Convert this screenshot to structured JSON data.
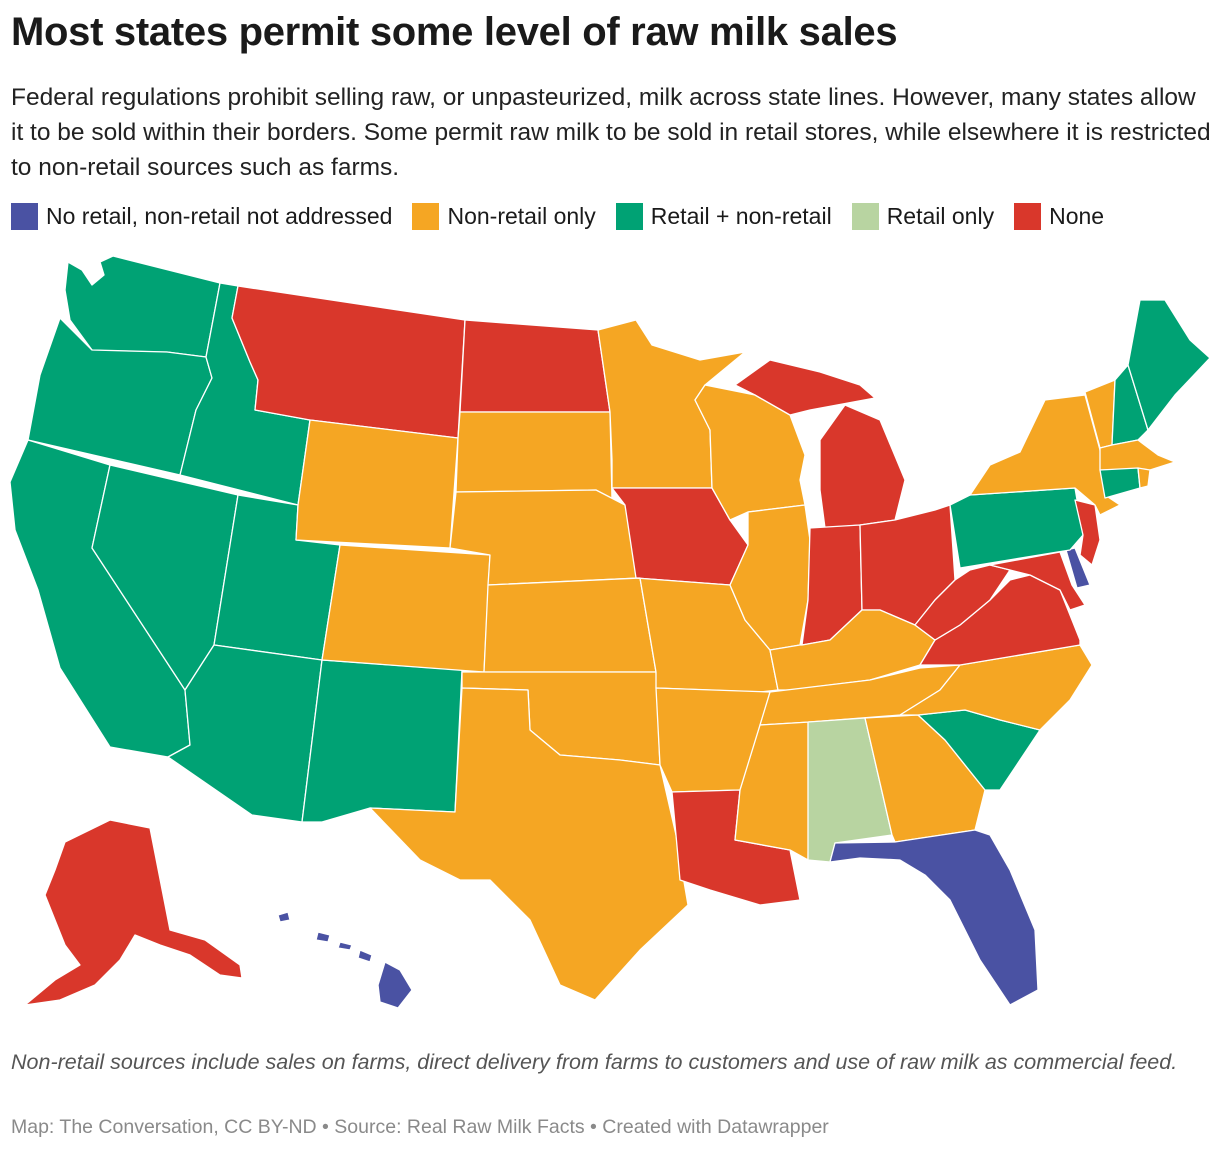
{
  "title": "Most states permit some level of raw milk sales",
  "subtitle": "Federal regulations prohibit selling raw, or unpasteurized, milk across state lines. However, many states allow it to be sold within their borders. Some permit raw milk to be sold in retail stores, while elsewhere it is restricted to non-retail sources such as farms.",
  "legend": [
    {
      "key": "no_retail",
      "label": "No retail, non-retail not addressed",
      "color": "#4a52a3"
    },
    {
      "key": "non_retail",
      "label": "Non-retail only",
      "color": "#f5a623"
    },
    {
      "key": "retail_plus",
      "label": "Retail + non-retail",
      "color": "#00a274"
    },
    {
      "key": "retail_only",
      "label": "Retail only",
      "color": "#b8d4a1"
    },
    {
      "key": "none",
      "label": "None",
      "color": "#d9372b"
    }
  ],
  "states": {
    "WA": "retail_plus",
    "OR": "retail_plus",
    "CA": "retail_plus",
    "ID": "retail_plus",
    "NV": "retail_plus",
    "UT": "retail_plus",
    "AZ": "retail_plus",
    "NM": "retail_plus",
    "MT": "none",
    "ND": "none",
    "WY": "non_retail",
    "SD": "non_retail",
    "CO": "non_retail",
    "NE": "non_retail",
    "KS": "non_retail",
    "OK": "non_retail",
    "TX": "non_retail",
    "MN": "non_retail",
    "IA": "none",
    "MO": "non_retail",
    "AR": "non_retail",
    "LA": "none",
    "WI": "non_retail",
    "IL": "non_retail",
    "MI": "none",
    "IN": "none",
    "OH": "none",
    "KY": "non_retail",
    "TN": "non_retail",
    "MS": "non_retail",
    "AL": "retail_only",
    "GA": "non_retail",
    "FL": "no_retail",
    "SC": "retail_plus",
    "NC": "non_retail",
    "VA": "none",
    "WV": "none",
    "MD": "none",
    "DE": "no_retail",
    "NJ": "none",
    "PA": "retail_plus",
    "NY": "non_retail",
    "VT": "non_retail",
    "NH": "retail_plus",
    "ME": "retail_plus",
    "MA": "non_retail",
    "CT": "retail_plus",
    "RI": "non_retail",
    "AK": "none",
    "HI": "no_retail"
  },
  "notes": "Non-retail sources include sales on farms, direct delivery from farms to customers and use of raw milk as commercial feed.",
  "source": "Map: The Conversation, CC BY-ND • Source: Real Raw Milk Facts • Created with Datawrapper"
}
